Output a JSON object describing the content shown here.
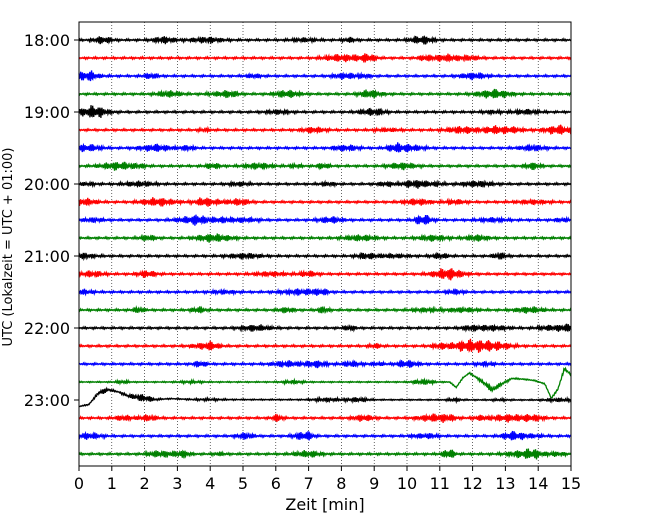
{
  "chart_data": {
    "type": "line",
    "title": "",
    "xlabel": "Zeit  [min]",
    "ylabel": "UTC (Lokalzeit = UTC + 01:00)",
    "xlim": [
      0,
      15
    ],
    "x_ticks": [
      "0",
      "1",
      "2",
      "3",
      "4",
      "5",
      "6",
      "7",
      "8",
      "9",
      "10",
      "11",
      "12",
      "13",
      "14",
      "15"
    ],
    "y_ticks": [
      "18:00",
      "19:00",
      "20:00",
      "21:00",
      "22:00",
      "23:00"
    ],
    "y_tick_rows": [
      0,
      4,
      8,
      12,
      16,
      20
    ],
    "vertical_grid": "dotted",
    "row_count": 24,
    "trace_colors": [
      "#000000",
      "#ff0000",
      "#0000ff",
      "#008000"
    ],
    "events": [
      {
        "row": 20,
        "description": "large disturbance with offset and recovery",
        "points": [
          [
            0.0,
            -0.72
          ],
          [
            0.3,
            -0.5
          ],
          [
            0.6,
            0.8
          ],
          [
            0.9,
            1.15
          ],
          [
            1.2,
            0.9
          ],
          [
            1.5,
            0.45
          ],
          [
            1.9,
            0.25
          ],
          [
            2.3,
            0.05
          ],
          [
            2.8,
            0.15
          ],
          [
            3.5,
            0.05
          ],
          [
            15,
            0
          ]
        ]
      },
      {
        "row": 19,
        "description": "large excursions after 11.4 min",
        "points": [
          [
            0,
            0
          ],
          [
            11.3,
            0
          ],
          [
            11.5,
            -0.6
          ],
          [
            11.7,
            0.45
          ],
          [
            11.9,
            1.0
          ],
          [
            12.2,
            0.3
          ],
          [
            12.6,
            -0.85
          ],
          [
            12.9,
            -0.2
          ],
          [
            13.2,
            0.4
          ],
          [
            13.6,
            0.3
          ],
          [
            13.9,
            0.15
          ],
          [
            14.2,
            -0.2
          ],
          [
            14.4,
            -1.8
          ],
          [
            14.6,
            -0.8
          ],
          [
            14.8,
            1.5
          ],
          [
            15,
            0.8
          ]
        ]
      }
    ]
  }
}
